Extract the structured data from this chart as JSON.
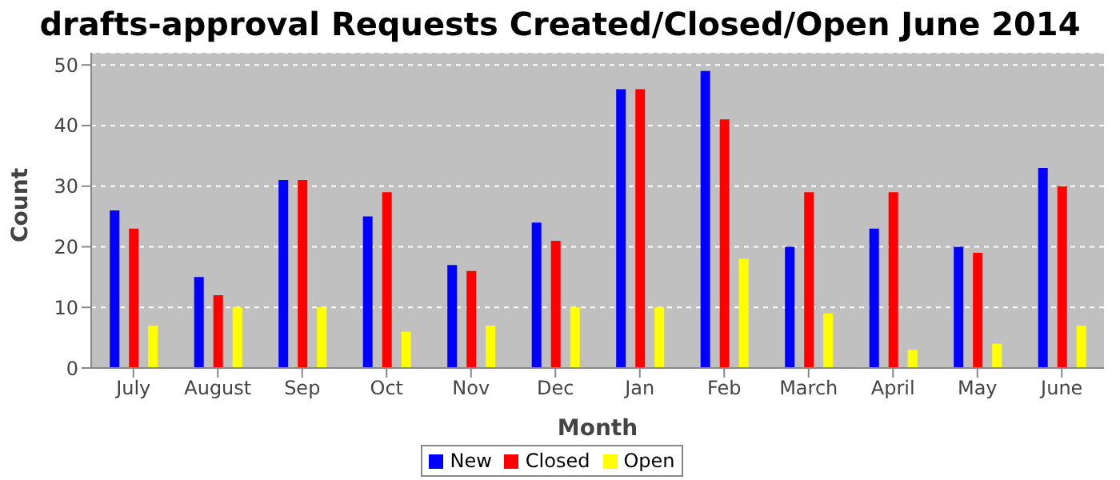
{
  "chart_data": {
    "type": "bar",
    "title": "drafts-approval Requests Created/Closed/Open June 2014",
    "xlabel": "Month",
    "ylabel": "Count",
    "categories": [
      "July",
      "August",
      "Sep",
      "Oct",
      "Nov",
      "Dec",
      "Jan",
      "Feb",
      "March",
      "April",
      "May",
      "June"
    ],
    "series": [
      {
        "name": "New",
        "color": "#0000ff",
        "values": [
          26,
          15,
          31,
          25,
          17,
          24,
          46,
          49,
          20,
          23,
          20,
          33
        ]
      },
      {
        "name": "Closed",
        "color": "#ff0000",
        "values": [
          23,
          12,
          31,
          29,
          16,
          21,
          46,
          41,
          29,
          29,
          19,
          30
        ]
      },
      {
        "name": "Open",
        "color": "#ffff00",
        "values": [
          7,
          10,
          10,
          6,
          7,
          10,
          10,
          18,
          9,
          3,
          4,
          7
        ]
      }
    ],
    "ylim": [
      0,
      52
    ],
    "yticks": [
      0,
      10,
      20,
      30,
      40,
      50
    ],
    "grid": "y",
    "legend": "bottom"
  }
}
